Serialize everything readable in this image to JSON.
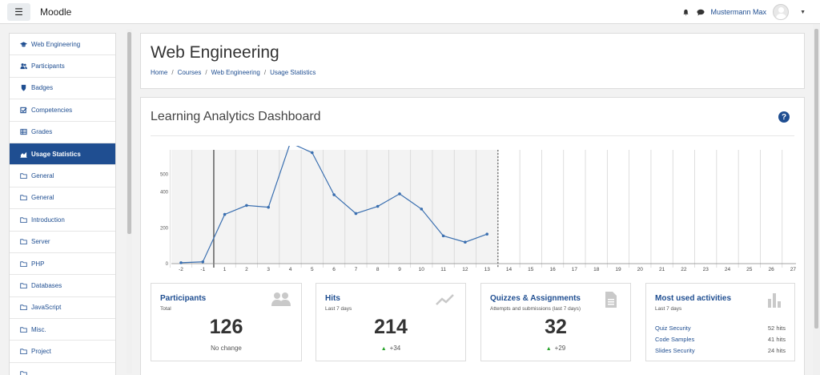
{
  "navbar": {
    "brand": "Moodle",
    "user_name": "Mustermann Max"
  },
  "sidebar": {
    "items": [
      {
        "label": "Web Engineering",
        "icon": "graduation-cap-icon"
      },
      {
        "label": "Participants",
        "icon": "users-icon"
      },
      {
        "label": "Badges",
        "icon": "shield-icon"
      },
      {
        "label": "Competencies",
        "icon": "checkbox-icon"
      },
      {
        "label": "Grades",
        "icon": "table-icon"
      },
      {
        "label": "Usage Statistics",
        "icon": "area-chart-icon",
        "active": true
      },
      {
        "label": "General",
        "icon": "folder-icon"
      },
      {
        "label": "General",
        "icon": "folder-icon"
      },
      {
        "label": "Introduction",
        "icon": "folder-icon"
      },
      {
        "label": "Server",
        "icon": "folder-icon"
      },
      {
        "label": "PHP",
        "icon": "folder-icon"
      },
      {
        "label": "Databases",
        "icon": "folder-icon"
      },
      {
        "label": "JavaScript",
        "icon": "folder-icon"
      },
      {
        "label": "Misc.",
        "icon": "folder-icon"
      },
      {
        "label": "Project",
        "icon": "folder-icon"
      },
      {
        "label": "",
        "icon": "folder-icon"
      }
    ]
  },
  "header": {
    "title": "Web Engineering",
    "breadcrumb": [
      "Home",
      "Courses",
      "Web Engineering",
      "Usage Statistics"
    ]
  },
  "dashboard": {
    "title": "Learning Analytics Dashboard",
    "help_label": "?"
  },
  "chart_data": {
    "type": "line",
    "x_ticks": [
      "-2",
      "-1",
      "1",
      "2",
      "3",
      "4",
      "5",
      "6",
      "7",
      "8",
      "9",
      "10",
      "11",
      "12",
      "13",
      "14",
      "15",
      "16",
      "17",
      "18",
      "19",
      "20",
      "21",
      "22",
      "23",
      "24",
      "25",
      "26",
      "27"
    ],
    "y_ticks": [
      "0",
      "200",
      "400",
      "500"
    ],
    "ylim": [
      0,
      600
    ],
    "values": [
      5,
      10,
      275,
      325,
      315,
      675,
      620,
      385,
      280,
      320,
      390,
      305,
      155,
      120,
      165
    ],
    "colors": {
      "line": "#3a6fb0",
      "shaded": "#f3f3f3",
      "grid": "#d6d6d6"
    },
    "grid": true
  },
  "stats": {
    "participants": {
      "title": "Participants",
      "subtitle": "Total",
      "value": "126",
      "footer": "No change"
    },
    "hits": {
      "title": "Hits",
      "subtitle": "Last 7 days",
      "value": "214",
      "delta": "+34"
    },
    "quizzes": {
      "title": "Quizzes & Assignments",
      "subtitle": "Attempts and submissions (last 7 days)",
      "value": "32",
      "delta": "+29"
    },
    "activities": {
      "title": "Most used activities",
      "subtitle": "Last 7 days",
      "items": [
        {
          "name": "Quiz Security",
          "hits": "52 hits"
        },
        {
          "name": "Code Samples",
          "hits": "41 hits"
        },
        {
          "name": "Slides Security",
          "hits": "24 hits"
        }
      ]
    }
  }
}
